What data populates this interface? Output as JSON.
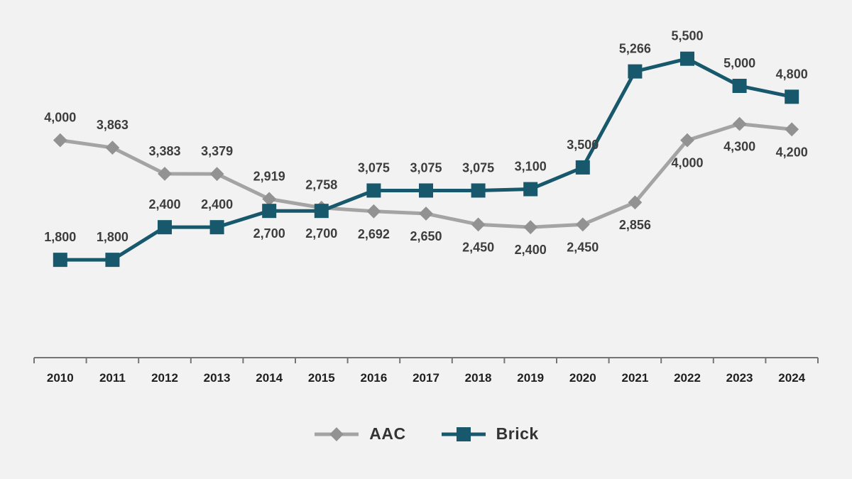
{
  "chart_data": {
    "type": "line",
    "title": "",
    "xlabel": "",
    "ylabel": "",
    "categories": [
      "2010",
      "2011",
      "2012",
      "2013",
      "2014",
      "2015",
      "2016",
      "2017",
      "2018",
      "2019",
      "2020",
      "2021",
      "2022",
      "2023",
      "2024"
    ],
    "series": [
      {
        "name": "AAC",
        "marker": "diamond",
        "color": "#a4a4a4",
        "marker_color": "#929292",
        "values": [
          4000,
          3863,
          3383,
          3379,
          2919,
          2758,
          2692,
          2650,
          2450,
          2400,
          2450,
          2856,
          4000,
          4300,
          4200
        ],
        "label_sides": [
          "above",
          "above",
          "above",
          "above",
          "above",
          "above",
          "below",
          "below",
          "below",
          "below",
          "below",
          "below",
          "below",
          "below",
          "below"
        ]
      },
      {
        "name": "Brick",
        "marker": "square",
        "color": "#17586c",
        "marker_color": "#17586c",
        "values": [
          1800,
          1800,
          2400,
          2400,
          2700,
          2700,
          3075,
          3075,
          3075,
          3100,
          3500,
          5266,
          5500,
          5000,
          4800
        ],
        "label_sides": [
          "above",
          "above",
          "above",
          "above",
          "below",
          "below",
          "above",
          "above",
          "above",
          "above",
          "above",
          "above",
          "above",
          "above",
          "above"
        ]
      }
    ],
    "ylim": [
      0,
      6580
    ],
    "grid": false,
    "legend_position": "bottom",
    "value_labels_shown": true,
    "number_format": "#,##0"
  },
  "style": {
    "background": "#f2f2f2",
    "axis_color": "#757575",
    "value_label_color": "#3d3d3d",
    "tick_label_color": "#1f1f1f"
  }
}
